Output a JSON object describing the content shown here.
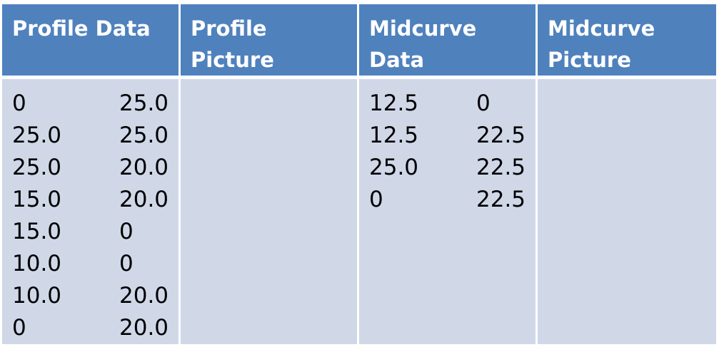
{
  "headers": [
    "Profile Data",
    "Profile Picture",
    "Midcurve Data",
    "Midcurve Picture"
  ],
  "profile_data": [
    [
      "0",
      "25.0"
    ],
    [
      "25.0",
      "25.0"
    ],
    [
      "25.0",
      "20.0"
    ],
    [
      "15.0",
      "20.0"
    ],
    [
      "15.0",
      "0"
    ],
    [
      "10.0",
      "0"
    ],
    [
      "10.0",
      "20.0"
    ],
    [
      "0",
      "20.0"
    ]
  ],
  "midcurve_data": [
    [
      "12.5",
      "0"
    ],
    [
      "12.5",
      "22.5"
    ],
    [
      "25.0",
      "22.5"
    ],
    [
      "0",
      "22.5"
    ]
  ],
  "colors": {
    "header_bg": "#4f81bd",
    "cell_bg": "#d0d8e8",
    "header_text": "#ffffff"
  }
}
